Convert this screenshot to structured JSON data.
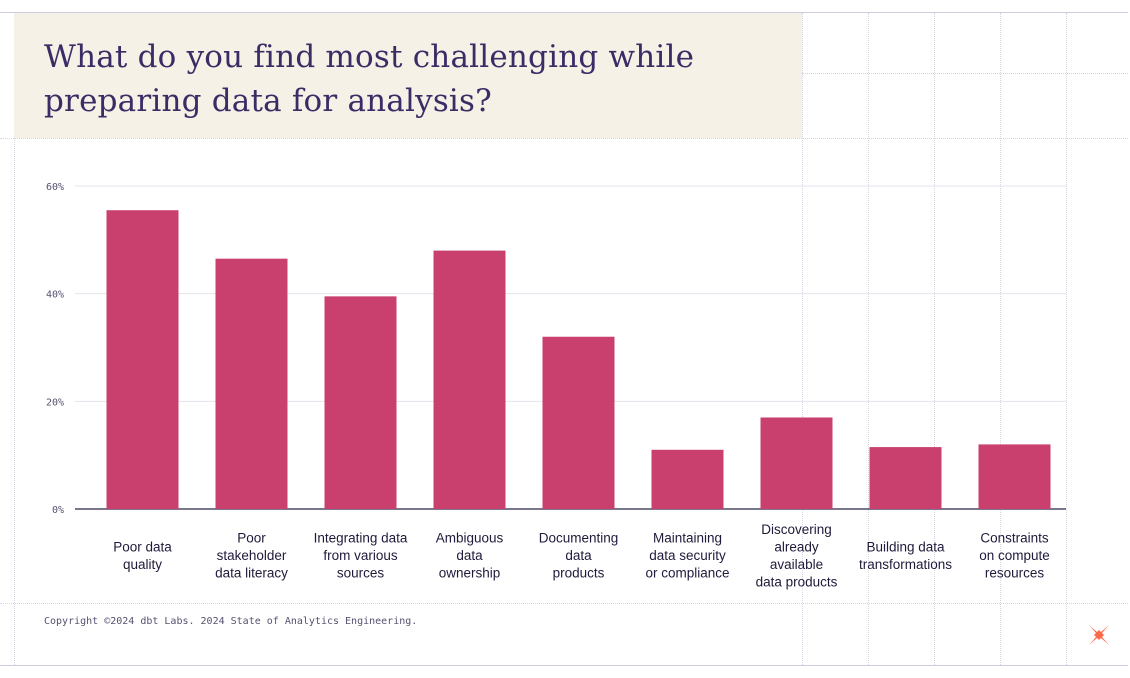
{
  "title": "What do you find most challenging while preparing data for analysis?",
  "footer": {
    "copyright": "Copyright ©2024 dbt Labs. 2024 State of Analytics Engineering."
  },
  "colors": {
    "bar": "#c9406e",
    "title": "#3b2c66",
    "title_bg": "#f5f1e6",
    "grid": "#e6e3ee",
    "logo": "#ff694b"
  },
  "icons": {
    "logo": "dbt-logo-icon"
  },
  "chart_data": {
    "type": "bar",
    "title": "What do you find most challenging while preparing data for analysis?",
    "xlabel": "",
    "ylabel": "",
    "ylim": [
      0,
      60
    ],
    "yticks": [
      0,
      20,
      40,
      60
    ],
    "ytick_labels": [
      "0%",
      "20%",
      "40%",
      "60%"
    ],
    "grid": true,
    "legend": "none",
    "categories": [
      "Poor data quality",
      "Poor stakeholder data literacy",
      "Integrating data from various sources",
      "Ambiguous data ownership",
      "Documenting data products",
      "Maintaining data security or compliance",
      "Discovering already available data products",
      "Building data transformations",
      "Constraints on compute resources"
    ],
    "category_label_lines": [
      [
        "Poor data",
        "quality"
      ],
      [
        "Poor",
        "stakeholder",
        "data literacy"
      ],
      [
        "Integrating data",
        "from various",
        "sources"
      ],
      [
        "Ambiguous",
        "data",
        "ownership"
      ],
      [
        "Documenting",
        "data",
        "products"
      ],
      [
        "Maintaining",
        "data security",
        "or compliance"
      ],
      [
        "Discovering",
        "already",
        "available",
        "data products"
      ],
      [
        "Building data",
        "transformations"
      ],
      [
        "Constraints",
        "on compute",
        "resources"
      ]
    ],
    "values": [
      55.5,
      46.5,
      39.5,
      48,
      32,
      11,
      17,
      11.5,
      12
    ]
  }
}
